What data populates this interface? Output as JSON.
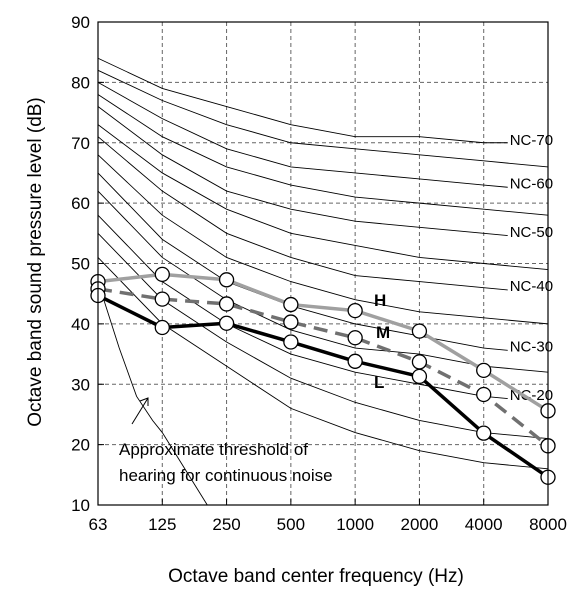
{
  "chart_data": {
    "type": "line",
    "title": "",
    "xlabel": "Octave band center frequency (Hz)",
    "ylabel": "Octave band  sound pressure level (dB)",
    "categories": [
      "63",
      "125",
      "250",
      "500",
      "1000",
      "2000",
      "4000",
      "8000"
    ],
    "ylim": [
      10,
      90
    ],
    "yticks": [
      "10",
      "20",
      "30",
      "40",
      "50",
      "60",
      "70",
      "80",
      "90"
    ],
    "grid": true,
    "series": [
      {
        "name": "H",
        "values": [
          47,
          48.2,
          47.3,
          43.2,
          42.2,
          38.8,
          32.3,
          25.6
        ],
        "color": "#a0a0a0",
        "dash": "solid",
        "label": "H"
      },
      {
        "name": "M",
        "values": [
          45.8,
          44.1,
          43.3,
          40.3,
          37.7,
          33.7,
          28.3,
          19.8
        ],
        "color": "#707070",
        "dash": "dashed",
        "label": "M"
      },
      {
        "name": "L",
        "values": [
          44.7,
          39.4,
          40.1,
          37.0,
          33.8,
          31.3,
          21.9,
          14.6
        ],
        "color": "#000000",
        "dash": "solid",
        "label": "L"
      }
    ],
    "nc_curves": [
      {
        "label": "",
        "values": [
          51,
          40,
          33,
          26,
          22,
          19,
          17,
          16
        ]
      },
      {
        "label": "",
        "values": [
          55,
          44,
          37,
          31,
          27,
          24,
          22,
          21
        ]
      },
      {
        "label": "NC-20",
        "values": [
          58,
          47,
          40,
          35,
          32,
          30,
          28,
          27
        ]
      },
      {
        "label": "",
        "values": [
          62,
          51,
          44,
          39,
          36,
          35,
          33,
          32
        ]
      },
      {
        "label": "NC-30",
        "values": [
          65,
          54,
          47,
          43,
          40,
          38,
          36,
          35
        ]
      },
      {
        "label": "",
        "values": [
          68,
          58,
          51,
          47,
          44,
          42,
          41,
          40
        ]
      },
      {
        "label": "NC-40",
        "values": [
          71,
          62,
          55,
          51,
          48,
          47,
          46,
          45
        ]
      },
      {
        "label": "",
        "values": [
          73,
          65,
          59,
          55,
          53,
          51,
          50,
          49
        ]
      },
      {
        "label": "NC-50",
        "values": [
          76,
          68,
          62,
          59,
          57,
          56,
          55,
          54
        ]
      },
      {
        "label": "",
        "values": [
          78,
          71,
          66,
          63,
          61,
          60,
          59,
          58
        ]
      },
      {
        "label": "NC-60",
        "values": [
          80,
          74,
          69,
          66,
          65,
          64,
          63,
          62
        ]
      },
      {
        "label": "",
        "values": [
          82,
          77,
          73,
          70,
          69,
          68,
          67,
          66
        ]
      },
      {
        "label": "NC-70",
        "values": [
          84,
          79,
          76,
          73,
          71,
          71,
          70,
          70
        ]
      }
    ],
    "threshold_curve": {
      "x": [
        0,
        0.33,
        0.6,
        0.85,
        1,
        1.35,
        1.7
      ],
      "values": [
        47,
        36,
        28,
        24,
        22,
        16,
        10
      ]
    },
    "annotation": {
      "lines": [
        "Approximate threshold of",
        "hearing for continuous noise"
      ]
    }
  }
}
